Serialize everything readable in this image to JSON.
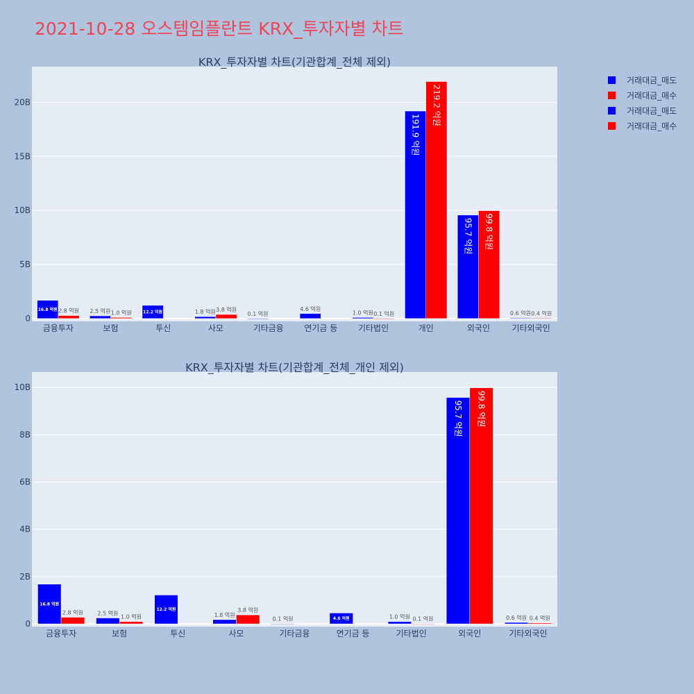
{
  "page": {
    "title": "2021-10-28 오스템임플란트 KRX_투자자별 차트"
  },
  "colors": {
    "page_bg": "#b0c4de",
    "plot_bg": "#e5ecf6",
    "sell": "#0000ff",
    "buy": "#ff0000",
    "title": "#ee4455",
    "text": "#2a3f5f"
  },
  "legend": [
    {
      "label": "거래대금_매도",
      "color": "#0000ff"
    },
    {
      "label": "거래대금_매수",
      "color": "#ff0000"
    },
    {
      "label": "거래대금_매도",
      "color": "#0000ff"
    },
    {
      "label": "거래대금_매수",
      "color": "#ff0000"
    }
  ],
  "chart_data": [
    {
      "type": "bar",
      "title": "KRX_투자자별 차트(기관합계_전체 제외)",
      "categories": [
        "금융투자",
        "보험",
        "투신",
        "사모",
        "기타금융",
        "연기금 등",
        "기타법인",
        "개인",
        "외국인",
        "기타외국인"
      ],
      "series": [
        {
          "name": "거래대금_매도",
          "color": "#0000ff",
          "values": [
            1.68,
            0.25,
            1.22,
            0.18,
            0.01,
            0.46,
            0.1,
            19.19,
            9.57,
            0.06
          ],
          "labels": [
            "16.8 억원",
            "2.5 억원",
            "12.2 억원",
            "1.8 억원",
            "0.1 억원",
            "4.6 억원",
            "1.0 억원",
            "191.9 억원",
            "95.7 억원",
            "0.6 억원"
          ]
        },
        {
          "name": "거래대금_매수",
          "color": "#ff0000",
          "values": [
            0.28,
            0.1,
            0,
            0.38,
            0,
            0,
            0.01,
            21.92,
            9.98,
            0.04
          ],
          "labels": [
            "2.8 억원",
            "1.0 억원",
            "",
            "3.8 억원",
            "",
            "",
            "0.1 억원",
            "219.2 억원",
            "99.8 억원",
            "0.4 억원"
          ]
        }
      ],
      "ylim": [
        0,
        23.3
      ],
      "yticks": [
        0,
        5,
        10,
        15,
        20
      ],
      "ytick_labels": [
        "0",
        "5B",
        "10B",
        "15B",
        "20B"
      ],
      "grid": true,
      "legend_position": "right"
    },
    {
      "type": "bar",
      "title": "KRX_투자자별 차트(기관합계_전체_개인 제외)",
      "categories": [
        "금융투자",
        "보험",
        "투신",
        "사모",
        "기타금융",
        "연기금 등",
        "기타법인",
        "외국인",
        "기타외국인"
      ],
      "series": [
        {
          "name": "거래대금_매도",
          "color": "#0000ff",
          "values": [
            1.68,
            0.25,
            1.22,
            0.18,
            0.01,
            0.46,
            0.1,
            9.57,
            0.06
          ],
          "labels": [
            "16.8 억원",
            "2.5 억원",
            "12.2 억원",
            "1.8 억원",
            "0.1 억원",
            "4.6 억원",
            "1.0 억원",
            "95.7 억원",
            "0.6 억원"
          ]
        },
        {
          "name": "거래대금_매수",
          "color": "#ff0000",
          "values": [
            0.28,
            0.1,
            0,
            0.38,
            0,
            0,
            0.01,
            9.98,
            0.04
          ],
          "labels": [
            "2.8 억원",
            "1.0 억원",
            "",
            "3.8 억원",
            "",
            "",
            "0.1 억원",
            "99.8 억원",
            "0.4 억원"
          ]
        }
      ],
      "ylim": [
        0,
        10.65
      ],
      "yticks": [
        0,
        2,
        4,
        6,
        8,
        10
      ],
      "ytick_labels": [
        "0",
        "2B",
        "4B",
        "6B",
        "8B",
        "10B"
      ],
      "grid": true,
      "legend_position": "right"
    }
  ]
}
